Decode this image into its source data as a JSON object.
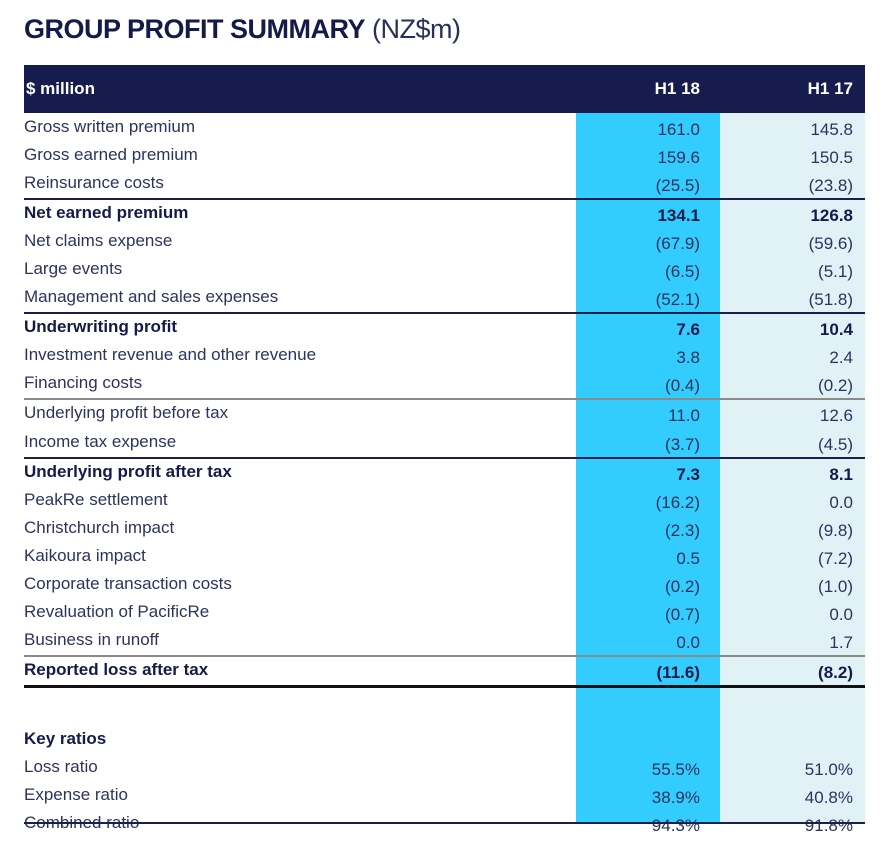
{
  "title": {
    "main": "GROUP PROFIT SUMMARY",
    "unit": "(NZ$m)"
  },
  "header": {
    "label": "$ million",
    "col1": "H1 18",
    "col2": "H1 17"
  },
  "colors": {
    "header_bg": "#161c4e",
    "col_h1_18": "#33ccff",
    "col_h1_17": "#e1f2f7",
    "text": "#1f2857"
  },
  "rows": [
    {
      "label": "Gross written premium",
      "h1_18": "161.0",
      "h1_17": "145.8"
    },
    {
      "label": "Gross earned premium",
      "h1_18": "159.6",
      "h1_17": "150.5"
    },
    {
      "label": "Reinsurance costs",
      "h1_18": "(25.5)",
      "h1_17": "(23.8)"
    },
    {
      "label": "Net earned premium",
      "h1_18": "134.1",
      "h1_17": "126.8"
    },
    {
      "label": "Net claims expense",
      "h1_18": "(67.9)",
      "h1_17": "(59.6)"
    },
    {
      "label": "Large events",
      "h1_18": "(6.5)",
      "h1_17": "(5.1)"
    },
    {
      "label": "Management and sales expenses",
      "h1_18": "(52.1)",
      "h1_17": "(51.8)"
    },
    {
      "label": "Underwriting profit",
      "h1_18": "7.6",
      "h1_17": "10.4"
    },
    {
      "label": "Investment revenue and other revenue",
      "h1_18": "3.8",
      "h1_17": "2.4"
    },
    {
      "label": "Financing costs",
      "h1_18": "(0.4)",
      "h1_17": "(0.2)"
    },
    {
      "label": "Underlying profit before tax",
      "h1_18": "11.0",
      "h1_17": "12.6"
    },
    {
      "label": "Income tax expense",
      "h1_18": "(3.7)",
      "h1_17": "(4.5)"
    },
    {
      "label": "Underlying profit after tax",
      "h1_18": "7.3",
      "h1_17": "8.1"
    },
    {
      "label": "PeakRe settlement",
      "h1_18": "(16.2)",
      "h1_17": "0.0"
    },
    {
      "label": "Christchurch impact",
      "h1_18": "(2.3)",
      "h1_17": "(9.8)"
    },
    {
      "label": "Kaikoura impact",
      "h1_18": "0.5",
      "h1_17": "(7.2)"
    },
    {
      "label": "Corporate transaction costs",
      "h1_18": "(0.2)",
      "h1_17": "(1.0)"
    },
    {
      "label": "Revaluation of PacificRe",
      "h1_18": "(0.7)",
      "h1_17": "0.0"
    },
    {
      "label": "Business in runoff",
      "h1_18": "0.0",
      "h1_17": "1.7"
    },
    {
      "label": "Reported loss after tax",
      "h1_18": "(11.6)",
      "h1_17": "(8.2)"
    }
  ],
  "key_ratios": {
    "heading": "Key ratios",
    "rows": [
      {
        "label": "Loss ratio",
        "h1_18": "55.5%",
        "h1_17": "51.0%"
      },
      {
        "label": "Expense ratio",
        "h1_18": "38.9%",
        "h1_17": "40.8%"
      },
      {
        "label": "Combined ratio",
        "h1_18": "94.3%",
        "h1_17": "91.8%"
      }
    ]
  }
}
